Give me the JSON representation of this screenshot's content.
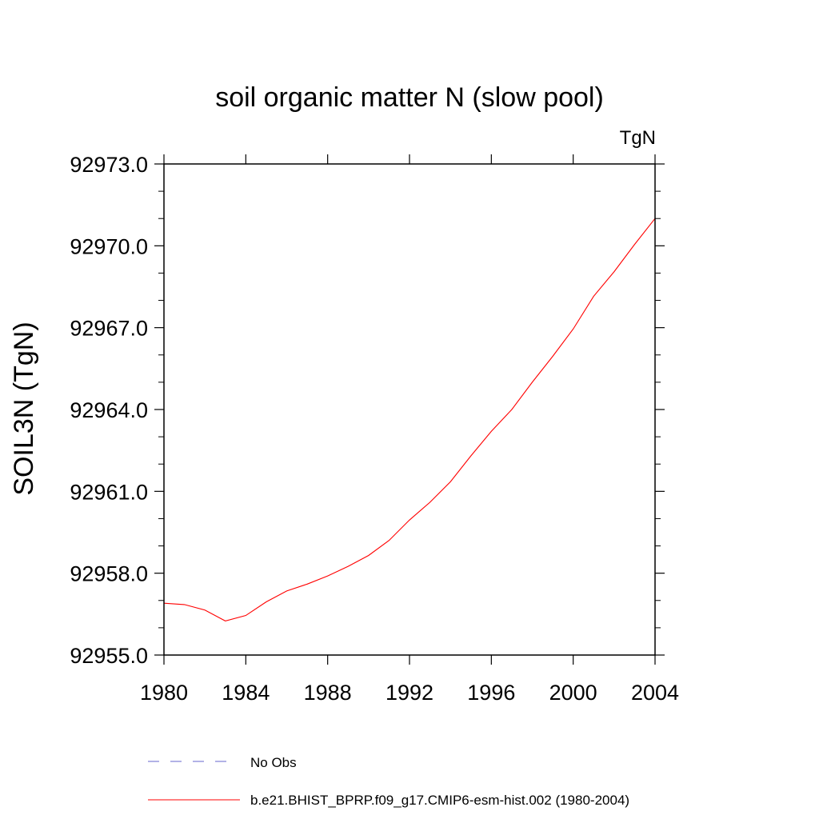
{
  "chart_data": {
    "type": "line",
    "title": "soil organic matter N (slow pool)",
    "units_label": "TgN",
    "ylabel": "SOIL3N  (TgN)",
    "xlabel": "",
    "xlim": [
      1980,
      2004
    ],
    "ylim": [
      92955.0,
      92973.0
    ],
    "x_ticks": [
      "1980",
      "1984",
      "1988",
      "1992",
      "1996",
      "2000",
      "2004"
    ],
    "y_ticks": [
      "92955.0",
      "92958.0",
      "92961.0",
      "92964.0",
      "92967.0",
      "92970.0",
      "92973.0"
    ],
    "grid": false,
    "legend_position": "bottom",
    "series": [
      {
        "name": "No Obs",
        "color": "#6666cc",
        "style": "dashed",
        "x": [],
        "values": []
      },
      {
        "name": "b.e21.BHIST_BPRP.f09_g17.CMIP6-esm-hist.002 (1980-2004)",
        "color": "#ff0000",
        "style": "solid",
        "x": [
          1980,
          1981,
          1982,
          1983,
          1984,
          1985,
          1986,
          1987,
          1988,
          1989,
          1990,
          1991,
          1992,
          1993,
          1994,
          1995,
          1996,
          1997,
          1998,
          1999,
          2000,
          2001,
          2002,
          2003,
          2004
        ],
        "values": [
          92956.9,
          92956.85,
          92956.65,
          92956.25,
          92956.45,
          92956.95,
          92957.35,
          92957.6,
          92957.9,
          92958.25,
          92958.65,
          92959.2,
          92959.95,
          92960.6,
          92961.35,
          92962.3,
          92963.2,
          92964.0,
          92965.0,
          92965.95,
          92966.95,
          92968.15,
          92969.05,
          92970.05,
          92971.0
        ]
      }
    ]
  }
}
